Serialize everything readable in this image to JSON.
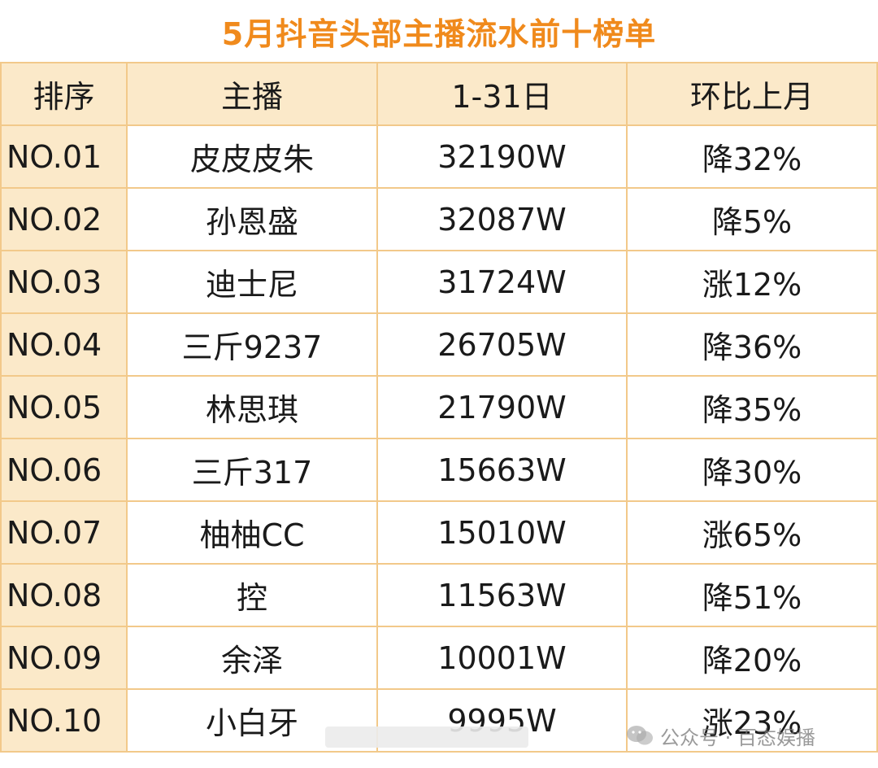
{
  "title": "5月抖音头部主播流水前十榜单",
  "headers": [
    "排序",
    "主播",
    "1-31日",
    "环比上月"
  ],
  "rows": [
    {
      "rank": "NO.01",
      "name": "皮皮皮朱",
      "revenue": "32190W",
      "change": "降32%"
    },
    {
      "rank": "NO.02",
      "name": "孙恩盛",
      "revenue": "32087W",
      "change": "降5%"
    },
    {
      "rank": "NO.03",
      "name": "迪士尼",
      "revenue": "31724W",
      "change": "涨12%"
    },
    {
      "rank": "NO.04",
      "name": "三斤9237",
      "revenue": "26705W",
      "change": "降36%"
    },
    {
      "rank": "NO.05",
      "name": "林思琪",
      "revenue": "21790W",
      "change": "降35%"
    },
    {
      "rank": "NO.06",
      "name": "三斤317",
      "revenue": "15663W",
      "change": "降30%"
    },
    {
      "rank": "NO.07",
      "name": "柚柚CC",
      "revenue": "15010W",
      "change": "涨65%"
    },
    {
      "rank": "NO.08",
      "name": "控",
      "revenue": "11563W",
      "change": "降51%"
    },
    {
      "rank": "NO.09",
      "name": "余泽",
      "revenue": "10001W",
      "change": "降20%"
    },
    {
      "rank": "NO.10",
      "name": "小白牙",
      "revenue": "9995W",
      "change": "涨23%"
    }
  ],
  "watermark": {
    "text": "公众号 · 百态娱播",
    "icon": "wechat-icon"
  },
  "colors": {
    "title": "#f08a1c",
    "header_bg": "#fbe9c9",
    "border": "#f2c98a"
  }
}
